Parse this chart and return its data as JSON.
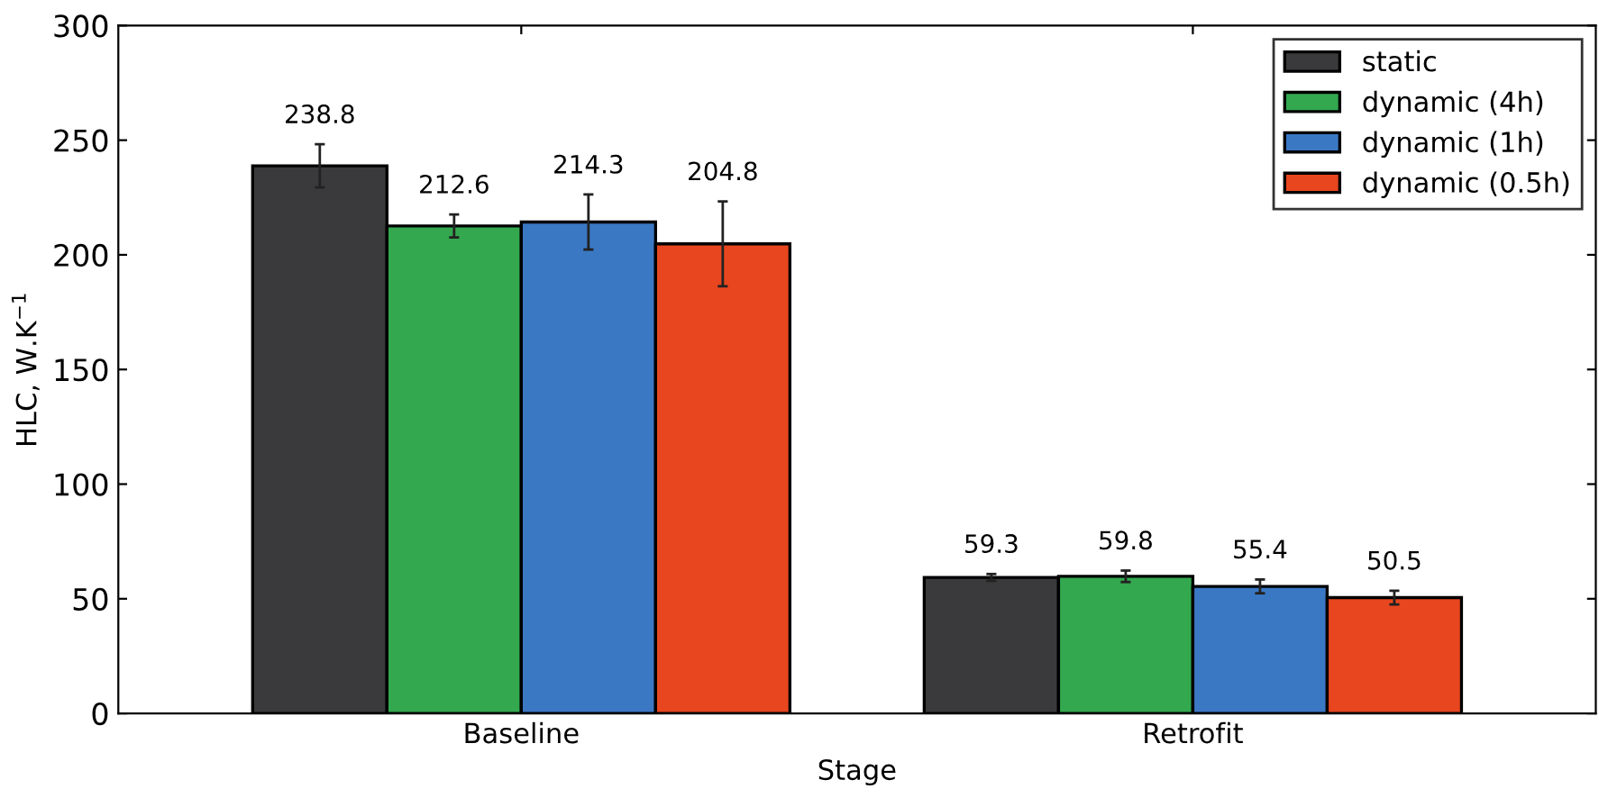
{
  "chart_data": {
    "type": "bar",
    "xlabel": "Stage",
    "ylabel": "HLC, W.K$^{−1}$",
    "categories": [
      "Baseline",
      "Retrofit"
    ],
    "series": [
      {
        "name": "static",
        "color": "#3a3a3c",
        "values": [
          238.8,
          59.3
        ],
        "errors": [
          9.4,
          1.5
        ]
      },
      {
        "name": "dynamic (4h)",
        "color": "#33a84f",
        "values": [
          212.6,
          59.8
        ],
        "errors": [
          5,
          2.5
        ]
      },
      {
        "name": "dynamic (1h)",
        "color": "#3b78c4",
        "values": [
          214.3,
          55.4
        ],
        "errors": [
          12,
          3
        ]
      },
      {
        "name": "dynamic (0.5h)",
        "color": "#e8461f",
        "values": [
          204.8,
          50.5
        ],
        "errors": [
          18.5,
          3
        ]
      }
    ],
    "ylim": [
      0,
      300
    ],
    "yticks": [
      0,
      50,
      100,
      150,
      200,
      250,
      300
    ],
    "data_labels": true,
    "legend": "top right",
    "grid": false
  }
}
